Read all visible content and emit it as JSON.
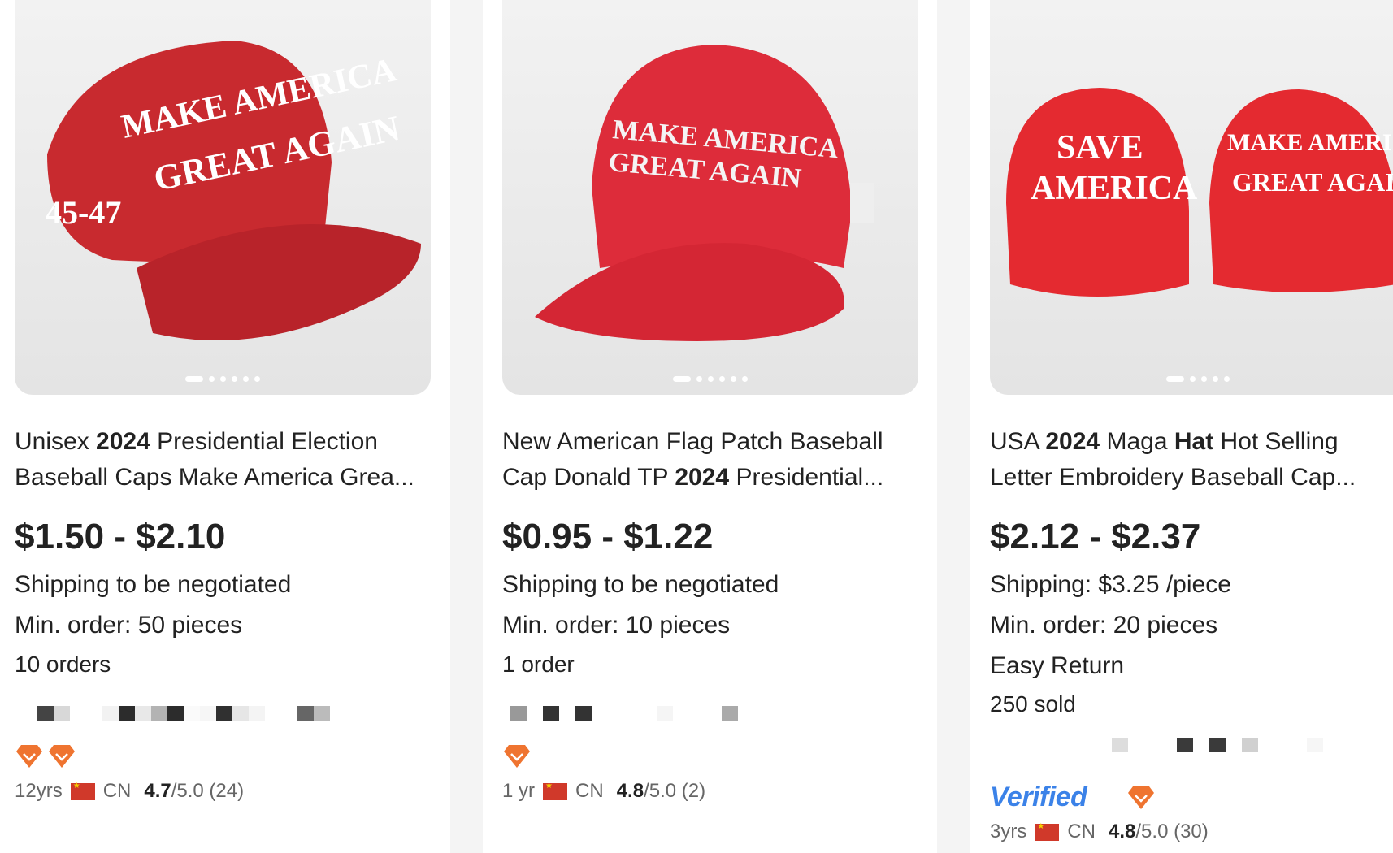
{
  "colors": {
    "accent_badge": "#ef7430",
    "verified_blue": "#173a74",
    "price": "#222222"
  },
  "products": [
    {
      "title_parts": [
        "Unisex ",
        "2024",
        " Presidential Election Baseball Caps Make America Grea..."
      ],
      "price": "$1.50 - $2.10",
      "shipping": "Shipping to be negotiated",
      "min_order": "Min. order: 50 pieces",
      "sales": "10 orders",
      "badges": 2,
      "years": "12yrs",
      "country": "CN",
      "rating": "4.7",
      "rating_suffix": "/5.0 (24)",
      "image_text": [
        "MAKE AMERICA",
        "GREAT AGAIN",
        "45-47"
      ]
    },
    {
      "title_parts": [
        "New American Flag Patch Baseball Cap Donald TP ",
        "2024",
        " Presidential..."
      ],
      "price": "$0.95 - $1.22",
      "shipping": "Shipping to be negotiated",
      "min_order": "Min. order: 10 pieces",
      "sales": "1 order",
      "badges": 1,
      "years": "1 yr",
      "country": "CN",
      "rating": "4.8",
      "rating_suffix": "/5.0 (2)",
      "image_text": [
        "MAKE AMERICA",
        "GREAT AGAIN"
      ]
    },
    {
      "title_parts": [
        "USA ",
        "2024",
        " Maga ",
        "Hat",
        " Hot Selling Letter Embroidery Baseball Cap..."
      ],
      "price": "$2.12 - $2.37",
      "shipping": "Shipping: $3.25 /piece",
      "min_order": "Min. order: 20 pieces",
      "easy_return": "Easy Return",
      "sales": "250 sold",
      "verified": "Verified",
      "badges": 1,
      "years": "3yrs",
      "country": "CN",
      "rating": "4.8",
      "rating_suffix": "/5.0 (30)",
      "image_text": [
        "SAVE",
        "AMERICA",
        "MAKE AMERICA",
        "GREAT AGAIN"
      ]
    }
  ]
}
